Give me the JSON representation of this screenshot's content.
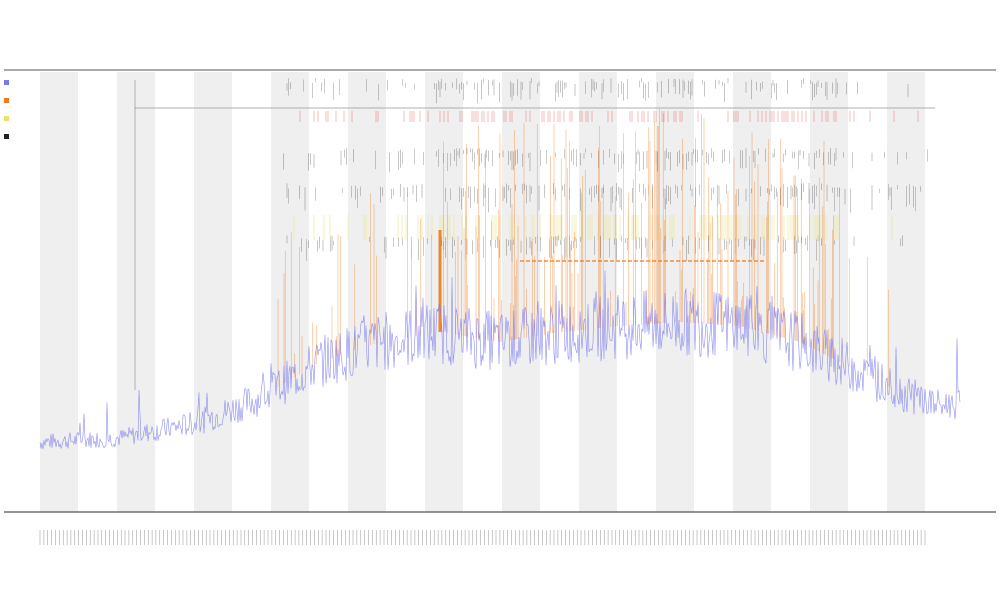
{
  "chart_data": {
    "type": "line",
    "title": "",
    "subtitle_lines": [],
    "xlabel": "",
    "ylabel": "",
    "grid": false,
    "legend_placement": "left",
    "series": [
      {
        "key": "baseline",
        "color": "#7a7af0",
        "approx_level": [
          {
            "x": 0,
            "y": 1.0
          },
          {
            "x": 20,
            "y": 1.2
          },
          {
            "x": 40,
            "y": 2.0
          },
          {
            "x": 55,
            "y": 3.2
          },
          {
            "x": 70,
            "y": 5.0
          },
          {
            "x": 85,
            "y": 6.0
          },
          {
            "x": 100,
            "y": 6.5
          },
          {
            "x": 115,
            "y": 6.0
          },
          {
            "x": 130,
            "y": 6.5
          },
          {
            "x": 145,
            "y": 6.8
          },
          {
            "x": 160,
            "y": 7.0
          },
          {
            "x": 175,
            "y": 6.8
          },
          {
            "x": 190,
            "y": 6.0
          },
          {
            "x": 205,
            "y": 4.5
          },
          {
            "x": 215,
            "y": 3.5
          },
          {
            "x": 225,
            "y": 2.8
          },
          {
            "x": 230,
            "y": 3.0
          }
        ]
      },
      {
        "key": "orange-peaks",
        "color": "#f07a1a"
      },
      {
        "key": "yellow-band",
        "color": "#e8e070"
      },
      {
        "key": "black-marks",
        "color": "#222222"
      },
      {
        "key": "red-marks",
        "color": "#e84040"
      }
    ],
    "shaded_bands": 12,
    "x_tick_count": 230
  },
  "colors": {
    "band": "#efefef",
    "axis": "#555555",
    "baseline": "#7a7af0",
    "orange": "#f07a1a",
    "yellow": "#e8e070",
    "black": "#222222",
    "red": "#e84040"
  }
}
